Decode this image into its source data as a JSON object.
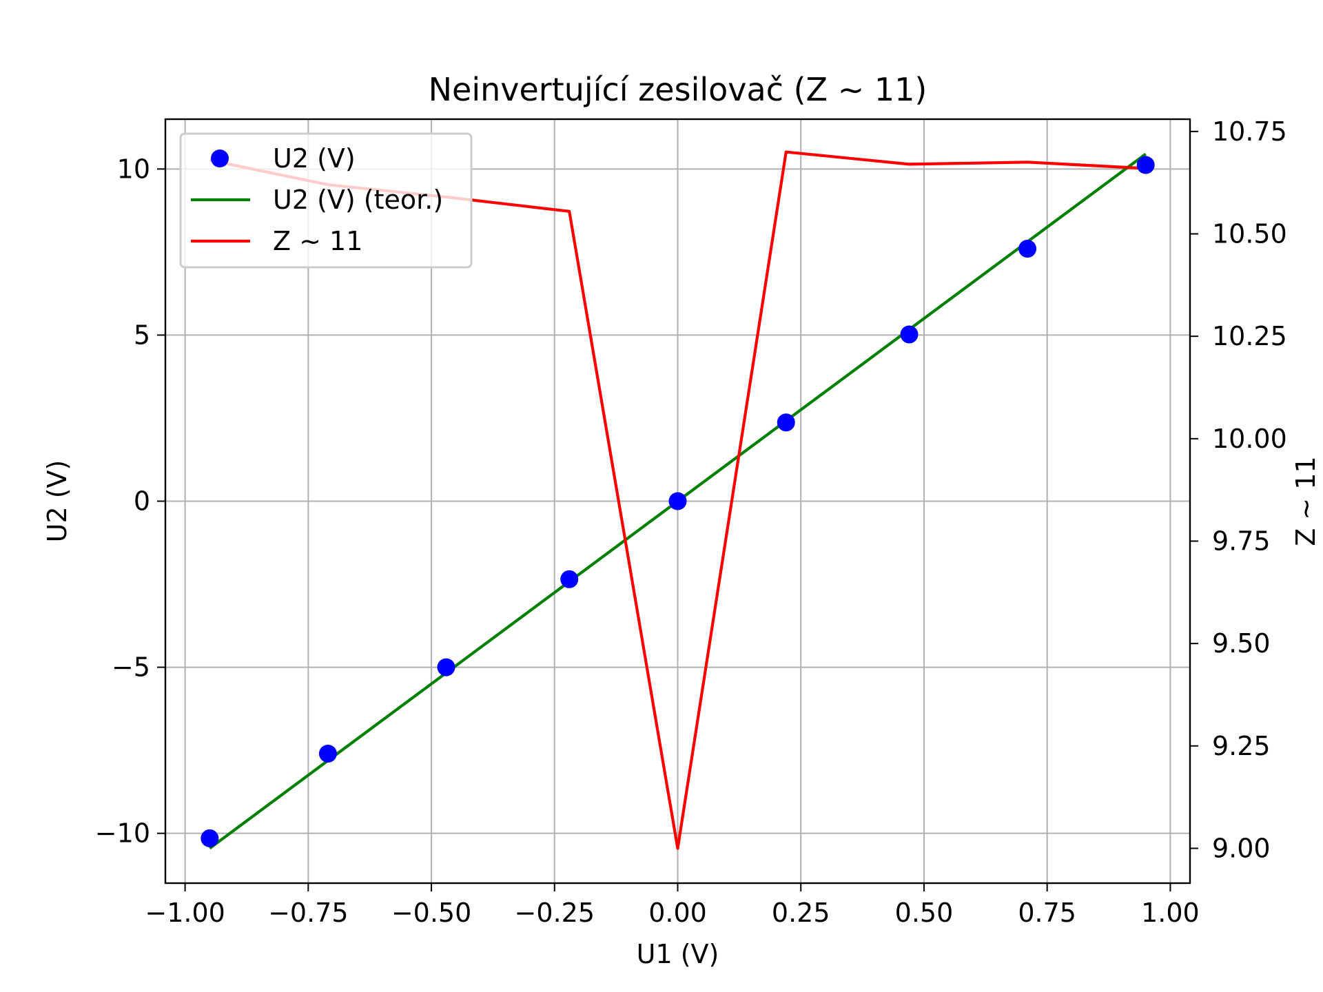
{
  "chart_data": {
    "type": "line",
    "title": "Neinvertující zesilovač (Z ~ 11)",
    "xlabel": "U1 (V)",
    "ylabel": "U2 (V)",
    "y2label": "Z ~ 11",
    "xlim": [
      -1.04,
      1.04
    ],
    "ylim": [
      -11.5,
      11.5
    ],
    "y2lim": [
      8.915,
      10.78
    ],
    "grid": true,
    "legend_position": "top-left",
    "x_ticks": [
      -1.0,
      -0.75,
      -0.5,
      -0.25,
      0.0,
      0.25,
      0.5,
      0.75,
      1.0
    ],
    "x_tick_labels": [
      "−1.00",
      "−0.75",
      "−0.50",
      "−0.25",
      "0.00",
      "0.25",
      "0.50",
      "0.75",
      "1.00"
    ],
    "y_ticks": [
      -10,
      -5,
      0,
      5,
      10
    ],
    "y_tick_labels": [
      "−10",
      "−5",
      "0",
      "5",
      "10"
    ],
    "y2_ticks": [
      9.0,
      9.25,
      9.5,
      9.75,
      10.0,
      10.25,
      10.5,
      10.75
    ],
    "y2_tick_labels": [
      "9.00",
      "9.25",
      "9.50",
      "9.75",
      "10.00",
      "10.25",
      "10.50",
      "10.75"
    ],
    "series": [
      {
        "name": "U2 (V)",
        "kind": "scatter",
        "axis": "left",
        "color": "#0000ff",
        "x": [
          -0.95,
          -0.71,
          -0.47,
          -0.22,
          0.0,
          0.22,
          0.47,
          0.71,
          0.95
        ],
        "y": [
          -10.15,
          -7.6,
          -5.0,
          -2.35,
          0.0,
          2.37,
          5.02,
          7.6,
          10.12
        ]
      },
      {
        "name": "U2 (V) (teor.)",
        "kind": "line",
        "axis": "left",
        "color": "#008000",
        "x": [
          -0.95,
          0.95
        ],
        "y": [
          -10.45,
          10.45
        ]
      },
      {
        "name": "Z ~ 11",
        "kind": "line",
        "axis": "right",
        "color": "#ff0000",
        "x": [
          -0.95,
          -0.71,
          -0.47,
          -0.22,
          0.0,
          0.22,
          0.47,
          0.71,
          0.95
        ],
        "y": [
          10.68,
          10.62,
          10.59,
          10.555,
          9.0,
          10.7,
          10.67,
          10.675,
          10.66
        ]
      }
    ]
  }
}
